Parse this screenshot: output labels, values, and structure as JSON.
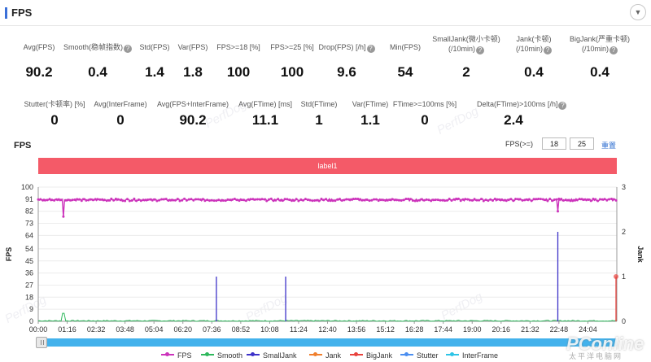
{
  "panel": {
    "title": "FPS",
    "collapse_icon": "chevron-down-icon"
  },
  "metrics_row1": [
    {
      "label": "Avg(FPS)",
      "value": "90.2",
      "help": false
    },
    {
      "label": "Smooth(稳帧指数)",
      "value": "0.4",
      "help": true
    },
    {
      "label": "Std(FPS)",
      "value": "1.4",
      "help": false
    },
    {
      "label": "Var(FPS)",
      "value": "1.8",
      "help": false
    },
    {
      "label": "FPS>=18 [%]",
      "value": "100",
      "help": false
    },
    {
      "label": "FPS>=25 [%]",
      "value": "100",
      "help": false
    },
    {
      "label": "Drop(FPS) [/h]",
      "value": "9.6",
      "help": true
    },
    {
      "label": "Min(FPS)",
      "value": "54",
      "help": false
    },
    {
      "label": "SmallJank(微小卡顿)",
      "label2": "(/10min)",
      "value": "2",
      "help": true
    },
    {
      "label": "Jank(卡顿)",
      "label2": "(/10min)",
      "value": "0.4",
      "help": true
    },
    {
      "label": "BigJank(严重卡顿)",
      "label2": "(/10min)",
      "value": "0.4",
      "help": true
    }
  ],
  "metrics_row2": [
    {
      "label": "Stutter(卡顿率) [%]",
      "value": "0",
      "help": false
    },
    {
      "label": "Avg(InterFrame)",
      "value": "0",
      "help": false
    },
    {
      "label": "Avg(FPS+InterFrame)",
      "value": "90.2",
      "help": false
    },
    {
      "label": "Avg(FTime) [ms]",
      "value": "11.1",
      "help": false
    },
    {
      "label": "Std(FTime)",
      "value": "1",
      "help": false
    },
    {
      "label": "Var(FTime)",
      "value": "1.1",
      "help": false
    },
    {
      "label": "FTime>=100ms [%]",
      "value": "0",
      "help": false
    },
    {
      "label": "Delta(FTime)>100ms [/h]",
      "value": "2.4",
      "help": true
    }
  ],
  "watermark_text": "PerfDog",
  "chart_section": {
    "title": "FPS",
    "threshold_label": "FPS(>=)",
    "threshold_values": [
      "18",
      "25"
    ],
    "reset_label": "重置",
    "label_bar": "label1"
  },
  "chart_data": {
    "type": "line",
    "title": "FPS",
    "ylabel": "FPS",
    "y2label": "Jank",
    "ylim": [
      0,
      100
    ],
    "yticks": [
      0,
      9,
      18,
      27,
      36,
      45,
      54,
      64,
      73,
      82,
      91,
      100
    ],
    "y2lim": [
      0,
      3
    ],
    "y2ticks": [
      0,
      1,
      2,
      3
    ],
    "xticks": [
      "00:00",
      "01:16",
      "02:32",
      "03:48",
      "05:04",
      "06:20",
      "07:36",
      "08:52",
      "10:08",
      "11:24",
      "12:40",
      "13:56",
      "15:12",
      "16:28",
      "17:44",
      "19:00",
      "20:16",
      "21:32",
      "22:48",
      "24:04"
    ],
    "duration_seconds": 1520,
    "grid": true,
    "legend_position": "bottom",
    "series": [
      {
        "name": "FPS",
        "color": "#cc33bb",
        "axis": "left",
        "baseline": 90.5,
        "dips": [
          [
            66,
            78
          ],
          [
            1365,
            82
          ],
          [
            1520,
            54
          ]
        ]
      },
      {
        "name": "Smooth",
        "color": "#2eb85c",
        "axis": "left",
        "baseline": 0.4,
        "spikes": [
          [
            66,
            6
          ]
        ]
      },
      {
        "name": "SmallJank",
        "color": "#3d32c9",
        "axis": "right",
        "spikes": [
          [
            468,
            1
          ],
          [
            650,
            1
          ],
          [
            1365,
            2
          ]
        ]
      },
      {
        "name": "Jank",
        "color": "#f07f2d",
        "axis": "right",
        "spikes": []
      },
      {
        "name": "BigJank",
        "color": "#e8413c",
        "axis": "right",
        "spikes": [
          [
            1520,
            1
          ]
        ]
      },
      {
        "name": "Stutter",
        "color": "#4b8ef0",
        "axis": "left",
        "spikes": []
      },
      {
        "name": "InterFrame",
        "color": "#2ec4e6",
        "axis": "left",
        "spikes": []
      }
    ]
  },
  "brand": {
    "name": "PConline",
    "sub": "太平洋电脑网"
  }
}
